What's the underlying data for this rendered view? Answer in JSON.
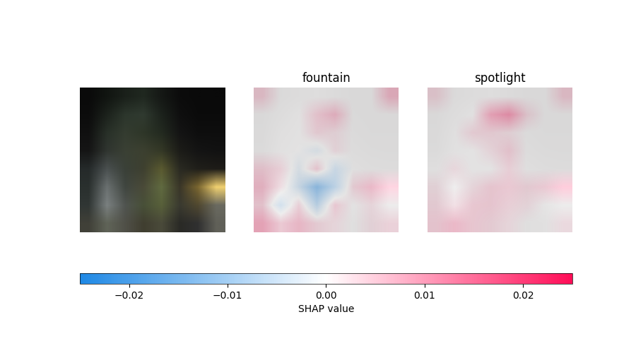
{
  "chart_data": {
    "type": "image_heatmaps",
    "tick_labels": false,
    "image": [
      [
        "#0a0a0a",
        "#111511",
        "#1a201a",
        "#202820",
        "#151815",
        "#0c0c0c",
        "#0a0a0a",
        "#0a0a0a"
      ],
      [
        "#0c0c0c",
        "#1c221c",
        "#2c362c",
        "#303a30",
        "#1c221c",
        "#0f0f0f",
        "#0b0b0b",
        "#0b0b0b"
      ],
      [
        "#101010",
        "#283028",
        "#343c30",
        "#2e3628",
        "#232a20",
        "#141414",
        "#0e0e0e",
        "#0e0e0e"
      ],
      [
        "#151515",
        "#303530",
        "#3a4034",
        "#3c4030",
        "#343826",
        "#1c1c18",
        "#141414",
        "#121212"
      ],
      [
        "#252a2a",
        "#4a5050",
        "#3a4038",
        "#3e4030",
        "#5a5a30",
        "#2a2a22",
        "#201f1a",
        "#1e1c18"
      ],
      [
        "#2a302e",
        "#6a7070",
        "#404640",
        "#4a4a38",
        "#606a40",
        "#3a3628",
        "#7a6630",
        "#f0d070"
      ],
      [
        "#303634",
        "#7a8080",
        "#505450",
        "#485038",
        "#58603a",
        "#3a3a30",
        "#504830",
        "#6a6a60"
      ],
      [
        "#404038",
        "#606458",
        "#505048",
        "#403e30",
        "#4a4a3a",
        "#2a2a26",
        "#303030",
        "#606058"
      ]
    ],
    "panels": [
      {
        "title": "fountain",
        "values": [
          [
            0.004,
            0,
            0,
            0,
            0,
            0,
            0,
            0.006
          ],
          [
            0,
            0,
            0,
            0.004,
            0.006,
            0,
            0,
            0
          ],
          [
            0,
            0,
            0,
            0.003,
            0.002,
            0,
            0,
            0
          ],
          [
            0,
            0,
            0,
            -0.002,
            0.002,
            0,
            0,
            0
          ],
          [
            0.004,
            0.003,
            -0.002,
            0.004,
            -0.004,
            0,
            0,
            0
          ],
          [
            0.006,
            0.002,
            -0.004,
            -0.012,
            -0.006,
            0.003,
            0.006,
            0.005
          ],
          [
            0.004,
            -0.004,
            0.003,
            -0.006,
            0.004,
            0,
            0.002,
            0
          ],
          [
            0.008,
            0.004,
            0.006,
            0.003,
            0.002,
            0,
            0.002,
            0.003
          ]
        ]
      },
      {
        "title": "spotlight",
        "values": [
          [
            0.003,
            0,
            0,
            0,
            0,
            0,
            0,
            0.004
          ],
          [
            0,
            0,
            0,
            0.008,
            0.01,
            0.003,
            0,
            0
          ],
          [
            0,
            0,
            0.003,
            0.003,
            0.002,
            0,
            0,
            0
          ],
          [
            0,
            0,
            0,
            0.002,
            0.004,
            0,
            0,
            0
          ],
          [
            0,
            0.002,
            0,
            0,
            0.003,
            0,
            0,
            0
          ],
          [
            0.002,
            0,
            0.002,
            0.004,
            0.004,
            0.003,
            0.004,
            0.006
          ],
          [
            0.003,
            0.002,
            0.004,
            0.004,
            0.003,
            0.002,
            0,
            0
          ],
          [
            0.004,
            0.006,
            0.004,
            0.003,
            0.002,
            0,
            0,
            0.002
          ]
        ]
      }
    ],
    "colorbar": {
      "label": "SHAP value",
      "colors": [
        "#1e88e5",
        "#ffffff",
        "#ff0d57"
      ],
      "range": [
        -0.025,
        0.025
      ],
      "ticks": [
        {
          "value": -0.02,
          "label": "−0.02"
        },
        {
          "value": -0.01,
          "label": "−0.01"
        },
        {
          "value": 0,
          "label": "0.00"
        },
        0.01,
        0.02
      ]
    }
  }
}
